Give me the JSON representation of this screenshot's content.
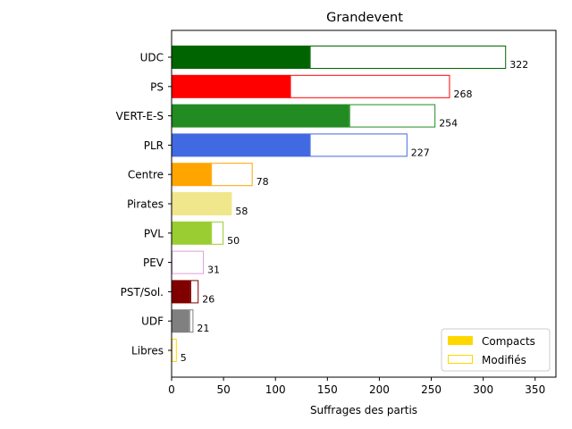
{
  "chart_data": {
    "type": "bar",
    "orientation": "horizontal",
    "stacked": true,
    "title": "Grandevent",
    "xlabel": "Suffrages des partis",
    "ylabel": "",
    "xlim": [
      0,
      370
    ],
    "xticks": [
      0,
      50,
      100,
      150,
      200,
      250,
      300,
      350
    ],
    "categories": [
      "UDC",
      "PS",
      "VERT-E-S",
      "PLR",
      "Centre",
      "Pirates",
      "PVL",
      "PEV",
      "PST/Sol.",
      "UDF",
      "Libres"
    ],
    "colors": [
      "#006400",
      "#ff0000",
      "#228b22",
      "#4169e1",
      "#ffa500",
      "#f0e68c",
      "#9acd32",
      "#dda0dd",
      "#800000",
      "#808080",
      "#ffd700"
    ],
    "series": [
      {
        "name": "Compacts",
        "values": [
          133,
          114,
          171,
          133,
          38,
          58,
          38,
          0,
          18,
          17,
          0
        ]
      },
      {
        "name": "Modifiés",
        "values": [
          189,
          154,
          83,
          94,
          40,
          0,
          12,
          31,
          8,
          4,
          5
        ]
      }
    ],
    "totals": [
      322,
      268,
      254,
      227,
      78,
      58,
      50,
      31,
      26,
      21,
      5
    ],
    "legend": {
      "position": "lower-right",
      "entries": [
        {
          "label": "Compacts",
          "style": "filled",
          "color": "#ffd700"
        },
        {
          "label": "Modifiés",
          "style": "outline",
          "color": "#ffd700"
        }
      ]
    },
    "grid": false
  }
}
